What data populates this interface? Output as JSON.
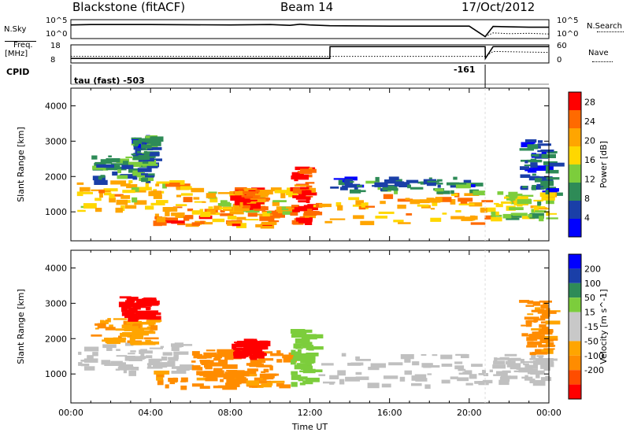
{
  "header": {
    "station": "Blackstone (fitACF)",
    "beam": "Beam 14",
    "date": "17/Oct/2012"
  },
  "noise_panel": {
    "left_label": "N.Sky",
    "right_label": "N.Search",
    "left_ticks": [
      "10^5",
      "10^0"
    ],
    "right_ticks": [
      "10^5",
      "10^0"
    ]
  },
  "freq_panel": {
    "left_label_line1": "Freq.",
    "left_label_line2": "[MHz]",
    "left_ticks": [
      "18",
      "8"
    ],
    "right_label": "Nave",
    "right_ticks": [
      "60",
      "0"
    ]
  },
  "cpid_panel": {
    "label": "CPID",
    "mode_text": "tau (fast) -503",
    "change_text": "-161"
  },
  "x_axis": {
    "label": "Time UT",
    "ticks": [
      "00:00",
      "04:00",
      "08:00",
      "12:00",
      "16:00",
      "20:00",
      "00:00"
    ]
  },
  "colors": {
    "power_scale": [
      "#0000ff",
      "#1a3fa8",
      "#2e8b57",
      "#7ccd3c",
      "#ffd700",
      "#ffa500",
      "#ff6a00",
      "#ff0000"
    ],
    "velocity_scale": [
      "#ff0000",
      "#ff4d00",
      "#ff8c00",
      "#ffa500",
      "#c8c8c8",
      "#c8c8c8",
      "#7ccd3c",
      "#2e8b57",
      "#1a3fa8",
      "#0000ff"
    ],
    "ground_scatter": "#c0c0c0"
  },
  "chart_data": [
    {
      "type": "line",
      "title": "",
      "xlabel": "",
      "ylabel": "N.Sky",
      "x_range_hours": [
        0,
        24
      ],
      "ylim_log10": [
        0,
        5
      ],
      "series": [
        {
          "name": "N.Sky",
          "x": [
            0,
            1,
            4,
            8,
            10,
            11,
            11.5,
            12,
            13,
            16,
            20,
            20.8,
            21.2,
            22,
            23,
            24
          ],
          "values_log10": [
            3.6,
            3.7,
            3.7,
            3.6,
            3.7,
            3.5,
            3.8,
            3.6,
            3.4,
            3.3,
            3.3,
            0.5,
            3.2,
            3.1,
            3.0,
            3.0
          ]
        },
        {
          "name": "N.Search",
          "x": [
            20.8,
            21.2,
            22,
            23,
            24
          ],
          "values_log10": [
            0.5,
            1.5,
            1.3,
            1.4,
            1.2
          ]
        }
      ]
    },
    {
      "type": "line",
      "title": "",
      "xlabel": "",
      "ylabel": "Freq. [MHz]",
      "x_range_hours": [
        0,
        24
      ],
      "ylim": [
        8,
        18
      ],
      "series": [
        {
          "name": "Freq.",
          "x": [
            0,
            13,
            13.01,
            20.8,
            20.81,
            21.2,
            21.21,
            24
          ],
          "values": [
            10.5,
            10.5,
            17,
            17,
            10.5,
            17,
            17,
            17
          ]
        },
        {
          "name": "Nave",
          "x": [
            0,
            20.8,
            21.2,
            24
          ],
          "values": [
            22,
            22,
            38,
            35
          ]
        }
      ]
    },
    {
      "type": "heatmap",
      "title": "",
      "xlabel": "",
      "ylabel": "Slant Range [km]",
      "x_range_hours": [
        0,
        24
      ],
      "ylim": [
        180,
        4500
      ],
      "yticks": [
        1000,
        2000,
        3000,
        4000
      ],
      "colorbar": {
        "label": "Power [dB]",
        "ticks": [
          4,
          8,
          12,
          16,
          20,
          24,
          28
        ],
        "range": [
          0,
          30
        ]
      },
      "scatter_bands": [
        {
          "t0": 0.3,
          "t1": 5.7,
          "r0": 1050,
          "r1": 1900,
          "power": 20
        },
        {
          "t0": 1.0,
          "t1": 4.0,
          "r0": 1900,
          "r1": 2600,
          "power": 10
        },
        {
          "t0": 3.0,
          "t1": 4.0,
          "r0": 2600,
          "r1": 3200,
          "power": 8
        },
        {
          "t0": 4.0,
          "t1": 10.5,
          "r0": 650,
          "r1": 1100,
          "power": 24
        },
        {
          "t0": 6.0,
          "t1": 11.0,
          "r0": 1000,
          "r1": 1700,
          "power": 18
        },
        {
          "t0": 8.0,
          "t1": 9.5,
          "r0": 1100,
          "r1": 1700,
          "power": 26
        },
        {
          "t0": 11.0,
          "t1": 12.0,
          "r0": 700,
          "r1": 2300,
          "power": 28
        },
        {
          "t0": 12.0,
          "t1": 20.8,
          "r0": 700,
          "r1": 1600,
          "power": 22
        },
        {
          "t0": 13.0,
          "t1": 20.8,
          "r0": 1600,
          "r1": 2000,
          "power": 8
        },
        {
          "t0": 21.0,
          "t1": 24.0,
          "r0": 800,
          "r1": 1600,
          "power": 16
        },
        {
          "t0": 22.5,
          "t1": 24.0,
          "r0": 1600,
          "r1": 3100,
          "power": 6
        }
      ]
    },
    {
      "type": "heatmap",
      "title": "",
      "xlabel": "Time UT",
      "ylabel": "Slant Range [km]",
      "x_range_hours": [
        0,
        24
      ],
      "ylim": [
        180,
        4500
      ],
      "yticks": [
        1000,
        2000,
        3000,
        4000
      ],
      "colorbar": {
        "label": "Velocity [m s^-1]",
        "ticks": [
          200,
          100,
          50,
          15,
          -15,
          -50,
          -100,
          -200
        ]
      },
      "scatter_bands": [
        {
          "t0": 0.3,
          "t1": 5.7,
          "r0": 1050,
          "r1": 1900,
          "velocity": 0,
          "ground": true
        },
        {
          "t0": 1.0,
          "t1": 4.0,
          "r0": 1900,
          "r1": 2600,
          "velocity": -40
        },
        {
          "t0": 2.4,
          "t1": 4.0,
          "r0": 2600,
          "r1": 3200,
          "velocity": -250
        },
        {
          "t0": 4.0,
          "t1": 10.5,
          "r0": 650,
          "r1": 1100,
          "velocity": -60
        },
        {
          "t0": 6.0,
          "t1": 11.0,
          "r0": 1000,
          "r1": 1700,
          "velocity": -80
        },
        {
          "t0": 8.0,
          "t1": 9.5,
          "r0": 1500,
          "r1": 2000,
          "velocity": -250
        },
        {
          "t0": 11.0,
          "t1": 12.0,
          "r0": 700,
          "r1": 2300,
          "velocity": 30
        },
        {
          "t0": 12.0,
          "t1": 20.8,
          "r0": 700,
          "r1": 1600,
          "velocity": 0,
          "ground": true
        },
        {
          "t0": 21.0,
          "t1": 24.0,
          "r0": 800,
          "r1": 1600,
          "velocity": 0,
          "ground": true
        },
        {
          "t0": 22.5,
          "t1": 24.0,
          "r0": 1600,
          "r1": 3100,
          "velocity": -60
        }
      ]
    }
  ]
}
